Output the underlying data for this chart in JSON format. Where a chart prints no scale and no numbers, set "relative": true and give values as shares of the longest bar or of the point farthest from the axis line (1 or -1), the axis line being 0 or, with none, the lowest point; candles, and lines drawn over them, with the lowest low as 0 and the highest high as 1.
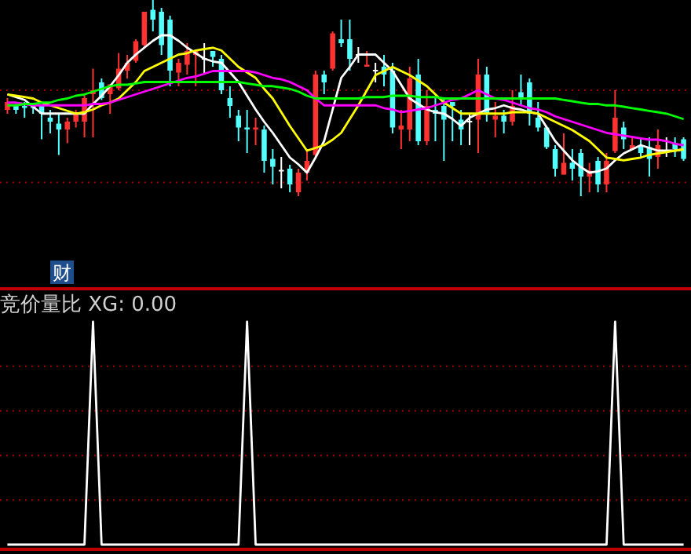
{
  "chart_data": [
    {
      "type": "candlestick",
      "relative": true,
      "categories": [
        null,
        null,
        null,
        null,
        null,
        null,
        null,
        null,
        null,
        null,
        null,
        null,
        null,
        null,
        null,
        null,
        null,
        null,
        null,
        null,
        null,
        null,
        null,
        null,
        null,
        null,
        null,
        null,
        null,
        null,
        null,
        null,
        null,
        null,
        null,
        null,
        null,
        null,
        null,
        null,
        null,
        null,
        null,
        null,
        null,
        null,
        null,
        null,
        null,
        null,
        null,
        null,
        null,
        null,
        null,
        null,
        null,
        null,
        null,
        null,
        null,
        null,
        null,
        null,
        null,
        null,
        null,
        null,
        null,
        null,
        null,
        null,
        null,
        null,
        null,
        null,
        null,
        null,
        null,
        null
      ],
      "ohlc": [
        [
          0.44,
          0.5,
          0.42,
          0.48
        ],
        [
          0.46,
          0.47,
          0.42,
          0.44
        ],
        [
          0.46,
          0.48,
          0.4,
          0.45
        ],
        [
          0.46,
          0.47,
          0.42,
          0.45
        ],
        [
          0.46,
          0.46,
          0.29,
          0.42
        ],
        [
          0.4,
          0.44,
          0.32,
          0.38
        ],
        [
          0.37,
          0.42,
          0.21,
          0.34
        ],
        [
          0.34,
          0.4,
          0.27,
          0.38
        ],
        [
          0.38,
          0.44,
          0.35,
          0.42
        ],
        [
          0.38,
          0.52,
          0.3,
          0.5
        ],
        [
          0.52,
          0.65,
          0.3,
          0.54
        ],
        [
          0.58,
          0.6,
          0.49,
          0.5
        ],
        [
          0.52,
          0.57,
          0.42,
          0.57
        ],
        [
          0.55,
          0.73,
          0.54,
          0.65
        ],
        [
          0.64,
          0.72,
          0.6,
          0.68
        ],
        [
          0.69,
          0.8,
          0.68,
          0.79
        ],
        [
          0.77,
          0.94,
          0.76,
          0.94
        ],
        [
          0.95,
          1,
          0.84,
          0.9
        ],
        [
          0.94,
          0.96,
          0.72,
          0.77
        ],
        [
          0.9,
          0.92,
          0.56,
          0.64
        ],
        [
          0.63,
          0.7,
          0.56,
          0.68
        ],
        [
          0.67,
          0.78,
          0.62,
          0.74
        ],
        [
          0.72,
          0.74,
          0.56,
          0.74
        ],
        [
          0.7,
          0.78,
          0.62,
          0.7
        ],
        [
          0.74,
          0.74,
          0.66,
          0.71
        ],
        [
          0.7,
          0.72,
          0.52,
          0.54
        ],
        [
          0.5,
          0.56,
          0.4,
          0.46
        ],
        [
          0.41,
          0.44,
          0.28,
          0.35
        ],
        [
          0.35,
          0.44,
          0.22,
          0.34
        ],
        [
          0.34,
          0.4,
          0.26,
          0.35
        ],
        [
          0.34,
          0.36,
          0.12,
          0.18
        ],
        [
          0.19,
          0.24,
          0.06,
          0.15
        ],
        [
          0.13,
          0.2,
          0.04,
          0.13
        ],
        [
          0.14,
          0.16,
          0.02,
          0.06
        ],
        [
          0.02,
          0.14,
          0,
          0.12
        ],
        [
          0.12,
          0.24,
          0.08,
          0.18
        ],
        [
          0.21,
          0.64,
          0.2,
          0.62
        ],
        [
          0.62,
          0.64,
          0.52,
          0.58
        ],
        [
          0.65,
          0.84,
          0.64,
          0.83
        ],
        [
          0.8,
          0.9,
          0.76,
          0.78
        ],
        [
          0.8,
          0.9,
          0.64,
          0.7
        ],
        [
          0.72,
          0.76,
          0.68,
          0.72
        ],
        [
          0.66,
          0.74,
          0.66,
          0.67
        ],
        [
          0.64,
          0.68,
          0.58,
          0.64
        ],
        [
          0.66,
          0.72,
          0.56,
          0.62
        ],
        [
          0.64,
          0.68,
          0.32,
          0.35
        ],
        [
          0.34,
          0.44,
          0.24,
          0.36
        ],
        [
          0.34,
          0.66,
          0.28,
          0.6
        ],
        [
          0.62,
          0.7,
          0.26,
          0.28
        ],
        [
          0.28,
          0.54,
          0.26,
          0.46
        ],
        [
          0.44,
          0.5,
          0.28,
          0.42
        ],
        [
          0.46,
          0.5,
          0.18,
          0.39
        ],
        [
          0.48,
          0.48,
          0.28,
          0.46
        ],
        [
          0.39,
          0.44,
          0.26,
          0.34
        ],
        [
          0.38,
          0.42,
          0.26,
          0.38
        ],
        [
          0.39,
          0.7,
          0.22,
          0.62
        ],
        [
          0.62,
          0.66,
          0.38,
          0.42
        ],
        [
          0.39,
          0.48,
          0.3,
          0.41
        ],
        [
          0.41,
          0.44,
          0.32,
          0.38
        ],
        [
          0.38,
          0.54,
          0.36,
          0.46
        ],
        [
          0.53,
          0.62,
          0.46,
          0.5
        ],
        [
          0.58,
          0.6,
          0.36,
          0.42
        ],
        [
          0.4,
          0.48,
          0.33,
          0.35
        ],
        [
          0.35,
          0.36,
          0.24,
          0.25
        ],
        [
          0.24,
          0.26,
          0.1,
          0.14
        ],
        [
          0.11,
          0.32,
          0.11,
          0.17
        ],
        [
          0.17,
          0.24,
          0.08,
          0.14
        ],
        [
          0.22,
          0.24,
          0,
          0.1
        ],
        [
          0.1,
          0.17,
          0.02,
          0.13
        ],
        [
          0.18,
          0.2,
          0.02,
          0.06
        ],
        [
          0.06,
          0.22,
          0.02,
          0.18
        ],
        [
          0.23,
          0.54,
          0.22,
          0.4
        ],
        [
          0.35,
          0.38,
          0.24,
          0.29
        ],
        [
          0.24,
          0.3,
          0.24,
          0.26
        ],
        [
          0.26,
          0.3,
          0.2,
          0.22
        ],
        [
          0.25,
          0.3,
          0.1,
          0.19
        ],
        [
          0.2,
          0.34,
          0.14,
          0.26
        ],
        [
          0.23,
          0.3,
          0.2,
          0.23
        ],
        [
          0.27,
          0.3,
          0.2,
          0.24
        ],
        [
          0.29,
          0.3,
          0.18,
          0.19
        ]
      ],
      "colors": [
        "#ff3232",
        "#54ffff",
        "#54ffff",
        "#54ffff",
        "#54ffff",
        "#54ffff",
        "#54ffff",
        "#ff3232",
        "#ff3232",
        "#ff3232",
        "#ff3232",
        "#54ffff",
        "#ff3232",
        "#ff3232",
        "#ff3232",
        "#ff3232",
        "#ff3232",
        "#54ffff",
        "#54ffff",
        "#54ffff",
        "#ff3232",
        "#ff3232",
        "#ff3232",
        "#ffffff",
        "#54ffff",
        "#54ffff",
        "#54ffff",
        "#54ffff",
        "#54ffff",
        "#ff3232",
        "#54ffff",
        "#54ffff",
        "#ffffff",
        "#54ffff",
        "#ff3232",
        "#ff3232",
        "#ff3232",
        "#54ffff",
        "#ff3232",
        "#54ffff",
        "#54ffff",
        "#ffffff",
        "#ff3232",
        "#ffffff",
        "#54ffff",
        "#54ffff",
        "#ff3232",
        "#ff3232",
        "#54ffff",
        "#ff3232",
        "#54ffff",
        "#54ffff",
        "#54ffff",
        "#54ffff",
        "#ffffff",
        "#ff3232",
        "#54ffff",
        "#ff3232",
        "#54ffff",
        "#ff3232",
        "#54ffff",
        "#54ffff",
        "#54ffff",
        "#54ffff",
        "#54ffff",
        "#ff3232",
        "#54ffff",
        "#54ffff",
        "#ff3232",
        "#54ffff",
        "#ff3232",
        "#ff3232",
        "#54ffff",
        "#ff3232",
        "#54ffff",
        "#54ffff",
        "#ff3232",
        "#ffffff",
        "#54ffff",
        "#54ffff"
      ],
      "ref_lines": [
        {
          "axis": "y",
          "value": 0.54,
          "color": "#a00000",
          "line_style": "dotted"
        },
        {
          "axis": "y",
          "value": 0.07,
          "color": "#a00000",
          "line_style": "dotted"
        }
      ],
      "annotations": [
        "财"
      ]
    },
    {
      "type": "line",
      "relative": true,
      "categories": [
        null,
        null,
        null,
        null,
        null,
        null,
        null,
        null,
        null,
        null,
        null,
        null,
        null,
        null,
        null,
        null,
        null,
        null,
        null,
        null,
        null,
        null,
        null,
        null,
        null,
        null,
        null,
        null,
        null,
        null,
        null,
        null,
        null,
        null,
        null,
        null,
        null,
        null,
        null,
        null,
        null,
        null,
        null,
        null,
        null,
        null,
        null,
        null,
        null,
        null,
        null,
        null,
        null,
        null,
        null,
        null,
        null,
        null,
        null,
        null,
        null,
        null,
        null,
        null,
        null,
        null,
        null,
        null,
        null,
        null,
        null,
        null,
        null,
        null,
        null,
        null,
        null,
        null,
        null,
        null
      ],
      "series": [
        {
          "color": "#ffffff",
          "values": [
            0.57,
            0.55,
            0.53,
            0.48,
            0.43,
            0.43,
            0.43,
            0.43,
            0.43,
            0.43,
            0.5,
            0.56,
            0.63,
            0.71,
            0.8,
            0.86,
            0.91,
            0.96,
            1,
            1,
            0.96,
            0.91,
            0.87,
            0.83,
            0.81,
            0.8,
            0.73,
            0.66,
            0.56,
            0.46,
            0.37,
            0.29,
            0.2,
            0.11,
            0.06,
            0,
            0.11,
            0.23,
            0.46,
            0.69,
            0.77,
            0.86,
            0.86,
            0.86,
            0.8,
            0.74,
            0.64,
            0.54,
            0.5,
            0.46,
            0.44,
            0.43,
            0.39,
            0.34,
            0.4,
            0.43,
            0.46,
            0.47,
            0.49,
            0.47,
            0.46,
            0.44,
            0.43,
            0.33,
            0.23,
            0.16,
            0.09,
            0.04,
            0,
            0.01,
            0.03,
            0.09,
            0.14,
            0.17,
            0.2,
            0.18,
            0.16,
            0.16,
            0.16,
            0.17
          ]
        },
        {
          "color": "#ffff00",
          "values": [
            0.57,
            0.56,
            0.55,
            0.54,
            0.51,
            0.49,
            0.47,
            0.45,
            0.43,
            0.44,
            0.46,
            0.49,
            0.51,
            0.54,
            0.6,
            0.66,
            0.74,
            0.77,
            0.8,
            0.83,
            0.86,
            0.87,
            0.89,
            0.9,
            0.91,
            0.89,
            0.83,
            0.77,
            0.73,
            0.69,
            0.61,
            0.54,
            0.44,
            0.34,
            0.25,
            0.16,
            0.18,
            0.2,
            0.24,
            0.29,
            0.39,
            0.49,
            0.6,
            0.71,
            0.74,
            0.77,
            0.74,
            0.71,
            0.67,
            0.63,
            0.57,
            0.51,
            0.47,
            0.43,
            0.43,
            0.43,
            0.43,
            0.43,
            0.43,
            0.44,
            0.44,
            0.44,
            0.43,
            0.4,
            0.37,
            0.34,
            0.31,
            0.27,
            0.23,
            0.17,
            0.11,
            0.1,
            0.09,
            0.1,
            0.11,
            0.13,
            0.14,
            0.15,
            0.16,
            0.17
          ]
        },
        {
          "color": "#ff00ff",
          "values": [
            0.51,
            0.51,
            0.5,
            0.49,
            0.49,
            0.49,
            0.49,
            0.49,
            0.49,
            0.49,
            0.5,
            0.5,
            0.51,
            0.53,
            0.55,
            0.57,
            0.59,
            0.61,
            0.63,
            0.65,
            0.67,
            0.69,
            0.7,
            0.72,
            0.74,
            0.74,
            0.74,
            0.74,
            0.74,
            0.73,
            0.71,
            0.69,
            0.68,
            0.66,
            0.63,
            0.6,
            0.54,
            0.49,
            0.49,
            0.49,
            0.49,
            0.49,
            0.49,
            0.49,
            0.47,
            0.46,
            0.44,
            0.45,
            0.46,
            0.47,
            0.49,
            0.51,
            0.53,
            0.54,
            0.57,
            0.6,
            0.57,
            0.54,
            0.53,
            0.51,
            0.49,
            0.47,
            0.46,
            0.44,
            0.41,
            0.39,
            0.37,
            0.35,
            0.33,
            0.31,
            0.29,
            0.28,
            0.27,
            0.26,
            0.25,
            0.24,
            0.24,
            0.23,
            0.21,
            0.2
          ]
        },
        {
          "color": "#00ff00",
          "values": [
            0.49,
            0.49,
            0.5,
            0.5,
            0.51,
            0.51,
            0.53,
            0.54,
            0.56,
            0.57,
            0.59,
            0.61,
            0.63,
            0.64,
            0.64,
            0.65,
            0.66,
            0.66,
            0.66,
            0.66,
            0.66,
            0.66,
            0.66,
            0.66,
            0.66,
            0.66,
            0.66,
            0.66,
            0.65,
            0.64,
            0.63,
            0.63,
            0.62,
            0.61,
            0.59,
            0.56,
            0.54,
            0.54,
            0.54,
            0.54,
            0.54,
            0.54,
            0.55,
            0.55,
            0.55,
            0.56,
            0.56,
            0.56,
            0.55,
            0.55,
            0.55,
            0.54,
            0.54,
            0.54,
            0.54,
            0.54,
            0.54,
            0.54,
            0.54,
            0.54,
            0.54,
            0.54,
            0.54,
            0.54,
            0.54,
            0.53,
            0.52,
            0.51,
            0.5,
            0.5,
            0.49,
            0.49,
            0.48,
            0.47,
            0.46,
            0.45,
            0.44,
            0.43,
            0.41,
            0.39
          ]
        }
      ]
    },
    {
      "type": "line",
      "relative": true,
      "title": "竞价量比 XG: 0.00",
      "categories": [
        null,
        null,
        null,
        null,
        null,
        null,
        null,
        null,
        null,
        null,
        null,
        null,
        null,
        null,
        null,
        null,
        null,
        null,
        null,
        null,
        null,
        null,
        null,
        null,
        null,
        null,
        null,
        null,
        null,
        null,
        null,
        null,
        null,
        null,
        null,
        null,
        null,
        null,
        null,
        null,
        null,
        null,
        null,
        null,
        null,
        null,
        null,
        null,
        null,
        null,
        null,
        null,
        null,
        null,
        null,
        null,
        null,
        null,
        null,
        null,
        null,
        null,
        null,
        null,
        null,
        null,
        null,
        null,
        null,
        null,
        null,
        null,
        null,
        null,
        null,
        null,
        null,
        null,
        null,
        null
      ],
      "series": [
        {
          "color": "#ffffff",
          "values": [
            0,
            0,
            0,
            0,
            0,
            0,
            0,
            0,
            0,
            0,
            1,
            0,
            0,
            0,
            0,
            0,
            0,
            0,
            0,
            0,
            0,
            0,
            0,
            0,
            0,
            0,
            0,
            0,
            1,
            0,
            0,
            0,
            0,
            0,
            0,
            0,
            0,
            0,
            0,
            0,
            0,
            0,
            0,
            0,
            0,
            0,
            0,
            0,
            0,
            0,
            0,
            0,
            0,
            0,
            0,
            0,
            0,
            0,
            0,
            0,
            0,
            0,
            0,
            0,
            0,
            0,
            0,
            0,
            0,
            0,
            0,
            1,
            0,
            0,
            0,
            0,
            0,
            0,
            0,
            0
          ]
        }
      ],
      "ref_lines": [
        {
          "axis": "y",
          "value": 0.2,
          "color": "#a00000",
          "line_style": "dotted"
        },
        {
          "axis": "y",
          "value": 0.4,
          "color": "#a00000",
          "line_style": "dotted"
        },
        {
          "axis": "y",
          "value": 0.6,
          "color": "#a00000",
          "line_style": "dotted"
        },
        {
          "axis": "y",
          "value": 0.8,
          "color": "#a00000",
          "line_style": "dotted"
        }
      ]
    }
  ]
}
